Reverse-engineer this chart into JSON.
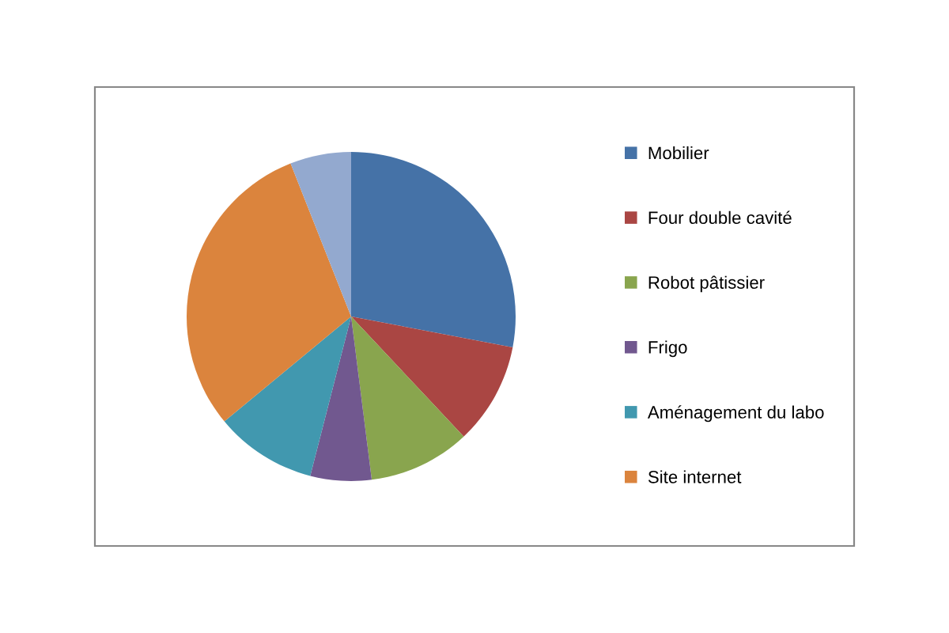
{
  "chart_data": {
    "type": "pie",
    "categories": [
      "Mobilier",
      "Four double cavité",
      "Robot pâtissier",
      "Frigo",
      "Aménagement du labo",
      "Site internet",
      null
    ],
    "values": [
      28,
      10,
      10,
      6,
      10,
      30,
      6
    ],
    "colors": [
      "#4572a7",
      "#aa4643",
      "#89a54e",
      "#71588f",
      "#4198af",
      "#db843d",
      "#93a9cf"
    ],
    "legend": "right"
  }
}
